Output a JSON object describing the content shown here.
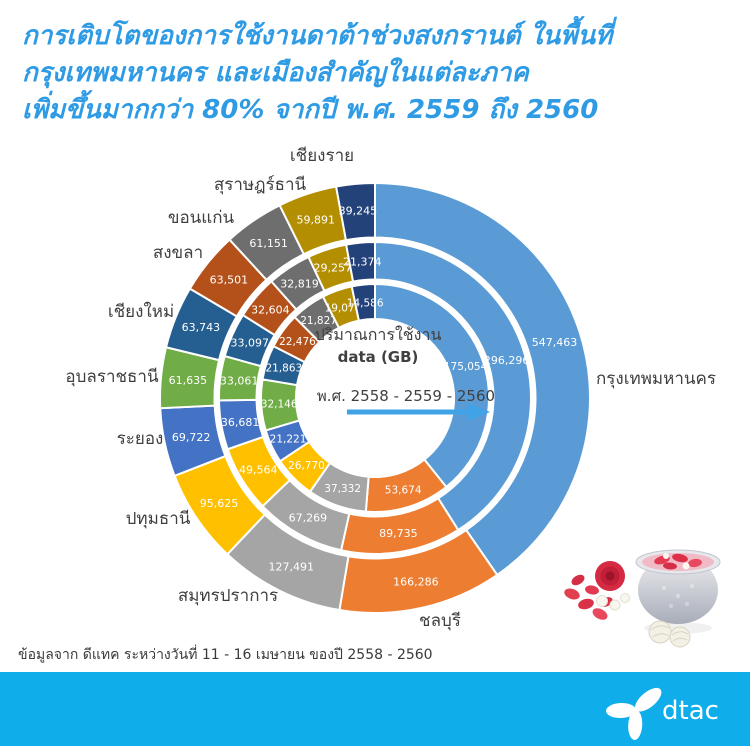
{
  "title": {
    "lines": [
      "การเติบโตของการใช้งานดาต้าช่วงสงกรานต์ ในพื้นที่",
      "กรุงเทพมหานคร และเมืองสำคัญในแต่ละภาค",
      "เพิ่มขึ้นมากกว่า 80% จากปี พ.ศ. 2559 ถึง 2560"
    ],
    "color": "#2E9BE4"
  },
  "chart_data": {
    "type": "donut",
    "description": "Three concentric doughnut rings (inner=2558, middle=2559, outer=2560), clockwise from top",
    "unit": "GB",
    "categories": [
      "กรุงเทพมหานคร",
      "ชลบุรี",
      "สมุทรปราการ",
      "ปทุมธานี",
      "ระยอง",
      "อุบลราชธานี",
      "เชียงใหม่",
      "สงขลา",
      "ขอนแก่น",
      "สุราษฎร์ธานี",
      "เชียงราย"
    ],
    "series": [
      {
        "name": "พ.ศ. 2558",
        "ring": "inner",
        "values": [
          175054,
          53674,
          37332,
          26770,
          21221,
          32146,
          21863,
          22476,
          21827,
          19078,
          14586
        ]
      },
      {
        "name": "พ.ศ. 2559",
        "ring": "middle",
        "values": [
          296296,
          89735,
          67269,
          49564,
          36681,
          33061,
          33097,
          32604,
          32819,
          29257,
          21374
        ]
      },
      {
        "name": "พ.ศ. 2560",
        "ring": "outer",
        "values": [
          547463,
          166286,
          127491,
          95625,
          69722,
          61635,
          63743,
          63501,
          61151,
          59891,
          39245
        ]
      }
    ],
    "colors": [
      "#5B9BD5",
      "#ED7D31",
      "#A5A5A5",
      "#FFC000",
      "#4472C4",
      "#70AD47",
      "#255E91",
      "#B4511B",
      "#6E6E6E",
      "#B38E00",
      "#24427A"
    ],
    "center": {
      "line1": "ปริมาณการใช้งาน",
      "line2": "data (GB)",
      "years": "พ.ศ. 2558 - 2559 - 2560",
      "arrow_color": "#3FA3E6",
      "text_color": "#404040"
    },
    "start_angle_deg": 0,
    "direction": "clockwise",
    "grid": false,
    "legend_position": "labels-around-ring"
  },
  "footer": {
    "source": "ข้อมูลจาก ดีแทค ระหว่างวันที่ 11 - 16 เมษายน ของปี 2558 - 2560"
  },
  "brand": {
    "logo_text": "dtac",
    "band_color": "#0FAEEA"
  }
}
